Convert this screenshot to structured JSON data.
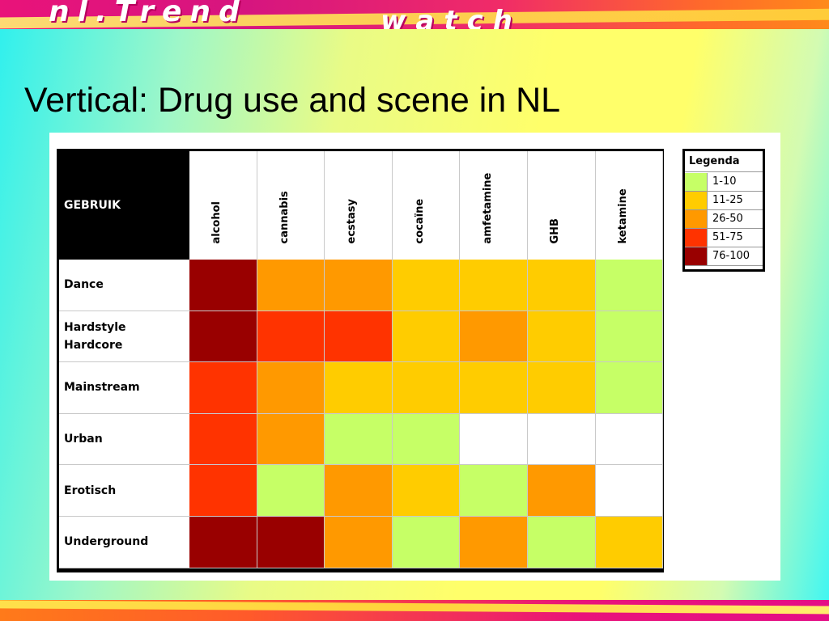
{
  "slide": {
    "title": "Vertical: Drug use and scene in NL",
    "logo_line1": "nl.Trend",
    "logo_line2": "watch"
  },
  "colors": {
    "none": "#ffffff",
    "1-10": "#c6ff66",
    "11-25": "#ffcc00",
    "26-50": "#ff9900",
    "51-75": "#ff3300",
    "76-100": "#990000"
  },
  "chart_data": {
    "type": "heatmap",
    "corner_label": "GEBRUIK",
    "columns": [
      "alcohol",
      "cannabis",
      "ecstasy",
      "cocaïne",
      "amfetamine",
      "GHB",
      "ketamine"
    ],
    "rows": [
      "Dance",
      "Hardstyle\nHardcore",
      "Mainstream",
      "Urban",
      "Erotisch",
      "Underground"
    ],
    "values": [
      [
        "76-100",
        "26-50",
        "26-50",
        "11-25",
        "11-25",
        "11-25",
        "1-10"
      ],
      [
        "76-100",
        "51-75",
        "51-75",
        "11-25",
        "26-50",
        "11-25",
        "1-10"
      ],
      [
        "51-75",
        "26-50",
        "11-25",
        "11-25",
        "11-25",
        "11-25",
        "1-10"
      ],
      [
        "51-75",
        "26-50",
        "1-10",
        "1-10",
        "none",
        "none",
        "none"
      ],
      [
        "51-75",
        "1-10",
        "26-50",
        "11-25",
        "1-10",
        "26-50",
        "none"
      ],
      [
        "76-100",
        "76-100",
        "26-50",
        "1-10",
        "26-50",
        "1-10",
        "11-25"
      ]
    ],
    "legend": {
      "title": "Legenda",
      "entries": [
        {
          "label": "1-10",
          "color": "#c6ff66"
        },
        {
          "label": "11-25",
          "color": "#ffcc00"
        },
        {
          "label": "26-50",
          "color": "#ff9900"
        },
        {
          "label": "51-75",
          "color": "#ff3300"
        },
        {
          "label": "76-100",
          "color": "#990000"
        }
      ]
    }
  }
}
